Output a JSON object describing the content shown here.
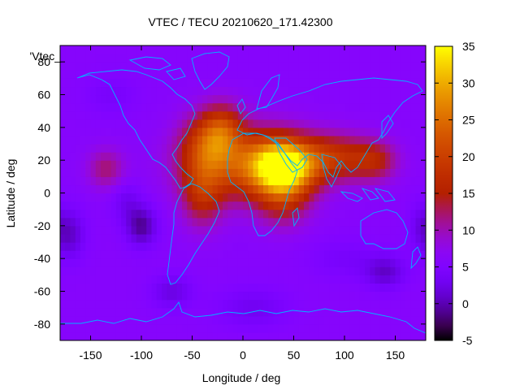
{
  "chart_data": {
    "type": "heatmap",
    "title": "VTEC / TECU 20210620_171.42300",
    "xlabel": "Longitude / deg",
    "ylabel": "Latitude / deg",
    "xlim": [
      -180,
      180
    ],
    "ylim": [
      -90,
      90
    ],
    "x_ticks": [
      -150,
      -100,
      -50,
      0,
      50,
      100,
      150
    ],
    "y_ticks": [
      -80,
      -60,
      -40,
      -20,
      0,
      20,
      40,
      60,
      80
    ],
    "colorbar": {
      "range": [
        -5,
        35
      ],
      "ticks": [
        -5,
        0,
        5,
        10,
        15,
        20,
        25,
        30,
        35
      ],
      "palette": "gnuplot black-blue-purple-red-orange-yellow"
    },
    "legend_label": "'Vtec_",
    "grid": false,
    "background_level": 6,
    "features": [
      {
        "lon": 40,
        "lat": 16,
        "value": 34,
        "rx": 30,
        "ry": 16
      },
      {
        "lon": 0,
        "lat": 18,
        "value": 20,
        "rx": 55,
        "ry": 22
      },
      {
        "lon": 90,
        "lat": 22,
        "value": 17,
        "rx": 35,
        "ry": 14
      },
      {
        "lon": 130,
        "lat": 20,
        "value": 14,
        "rx": 22,
        "ry": 12
      },
      {
        "lon": -35,
        "lat": 30,
        "value": 16,
        "rx": 25,
        "ry": 18
      },
      {
        "lon": -40,
        "lat": 0,
        "value": 15,
        "rx": 20,
        "ry": 20
      },
      {
        "lon": -20,
        "lat": 40,
        "value": 15,
        "rx": 20,
        "ry": 15
      },
      {
        "lon": 40,
        "lat": -5,
        "value": 13,
        "rx": 25,
        "ry": 16
      },
      {
        "lon": -135,
        "lat": 15,
        "value": 12,
        "rx": 18,
        "ry": 12
      },
      {
        "lon": -115,
        "lat": -5,
        "value": 3,
        "rx": 15,
        "ry": 12
      },
      {
        "lon": -100,
        "lat": -20,
        "value": -1,
        "rx": 15,
        "ry": 12
      },
      {
        "lon": -170,
        "lat": -25,
        "value": 1,
        "rx": 15,
        "ry": 15
      },
      {
        "lon": 140,
        "lat": -48,
        "value": 1,
        "rx": 20,
        "ry": 10
      },
      {
        "lon": -70,
        "lat": -60,
        "value": 2,
        "rx": 20,
        "ry": 10
      },
      {
        "lon": 175,
        "lat": -20,
        "value": 3,
        "rx": 12,
        "ry": 15
      },
      {
        "lon": -130,
        "lat": 60,
        "value": 4,
        "rx": 25,
        "ry": 12
      },
      {
        "lon": 10,
        "lat": -70,
        "value": 3,
        "rx": 35,
        "ry": 12
      },
      {
        "lon": 100,
        "lat": -40,
        "value": 4,
        "rx": 35,
        "ry": 12
      }
    ]
  }
}
